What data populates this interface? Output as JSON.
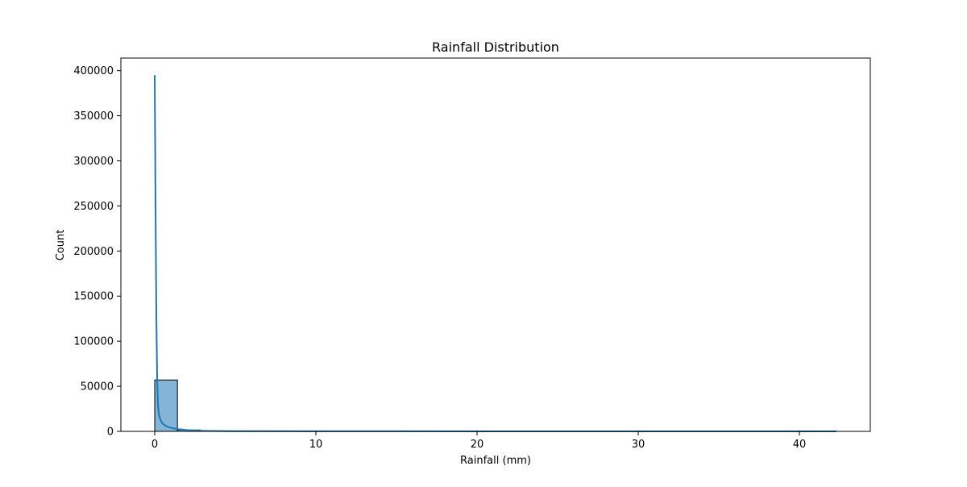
{
  "chart_data": {
    "type": "histogram",
    "title": "Rainfall Distribution",
    "xlabel": "Rainfall (mm)",
    "ylabel": "Count",
    "xlim": [
      -2.1,
      44.4
    ],
    "ylim": [
      0,
      414000
    ],
    "xticks": [
      0,
      10,
      20,
      30,
      40
    ],
    "yticks": [
      0,
      50000,
      100000,
      150000,
      200000,
      250000,
      300000,
      350000,
      400000
    ],
    "grid": false,
    "legend": "none",
    "bins": [
      {
        "x0": 0.0,
        "x1": 1.41,
        "count": 57000
      },
      {
        "x0": 1.41,
        "x1": 2.82,
        "count": 1500
      },
      {
        "x0": 2.82,
        "x1": 4.23,
        "count": 500
      },
      {
        "x0": 4.23,
        "x1": 5.64,
        "count": 200
      },
      {
        "x0": 5.64,
        "x1": 7.05,
        "count": 100
      }
    ],
    "kde_line": {
      "x": [
        0.0,
        0.05,
        0.1,
        0.15,
        0.2,
        0.25,
        0.3,
        0.4,
        0.5,
        0.6,
        0.8,
        1.0,
        1.2,
        1.5,
        2.0,
        2.5,
        3.0,
        4.0,
        5.0,
        10.0,
        20.0,
        30.0,
        42.3
      ],
      "y": [
        395000,
        250000,
        130000,
        60000,
        30000,
        20000,
        16000,
        11000,
        8500,
        7000,
        5200,
        4000,
        3200,
        2300,
        1400,
        900,
        600,
        350,
        250,
        100,
        40,
        20,
        10
      ]
    },
    "colors": {
      "bar_fill": "#1f77b4",
      "bar_fill_opacity": 0.55,
      "bar_edge": "#000000",
      "line": "#1f77b4"
    }
  }
}
